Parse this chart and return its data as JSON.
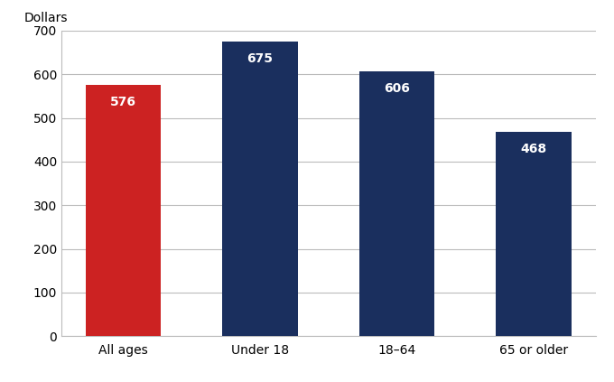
{
  "categories": [
    "All ages",
    "Under 18",
    "18–64",
    "65 or older"
  ],
  "values": [
    576,
    675,
    606,
    468
  ],
  "bar_colors": [
    "#cc2222",
    "#1a2f5e",
    "#1a2f5e",
    "#1a2f5e"
  ],
  "ylabel": "Dollars",
  "ylim": [
    0,
    700
  ],
  "yticks": [
    0,
    100,
    200,
    300,
    400,
    500,
    600,
    700
  ],
  "label_color": "#ffffff",
  "label_fontsize": 10,
  "label_fontweight": "bold",
  "ylabel_fontsize": 10,
  "tick_fontsize": 10,
  "background_color": "#ffffff",
  "grid_color": "#bbbbbb",
  "bar_width": 0.55
}
